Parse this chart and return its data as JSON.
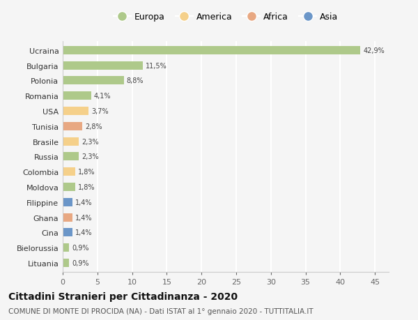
{
  "categories": [
    "Ucraina",
    "Bulgaria",
    "Polonia",
    "Romania",
    "USA",
    "Tunisia",
    "Brasile",
    "Russia",
    "Colombia",
    "Moldova",
    "Filippine",
    "Ghana",
    "Cina",
    "Bielorussia",
    "Lituania"
  ],
  "values": [
    42.9,
    11.5,
    8.8,
    4.1,
    3.7,
    2.8,
    2.3,
    2.3,
    1.8,
    1.8,
    1.4,
    1.4,
    1.4,
    0.9,
    0.9
  ],
  "labels": [
    "42,9%",
    "11,5%",
    "8,8%",
    "4,1%",
    "3,7%",
    "2,8%",
    "2,3%",
    "2,3%",
    "1,8%",
    "1,8%",
    "1,4%",
    "1,4%",
    "1,4%",
    "0,9%",
    "0,9%"
  ],
  "colors": [
    "#aec98a",
    "#aec98a",
    "#aec98a",
    "#aec98a",
    "#f5d08a",
    "#e8a882",
    "#f5d08a",
    "#aec98a",
    "#f5d08a",
    "#aec98a",
    "#6b96c8",
    "#e8a882",
    "#6b96c8",
    "#aec98a",
    "#aec98a"
  ],
  "legend_labels": [
    "Europa",
    "America",
    "Africa",
    "Asia"
  ],
  "legend_colors": [
    "#aec98a",
    "#f5d08a",
    "#e8a882",
    "#6b96c8"
  ],
  "title": "Cittadini Stranieri per Cittadinanza - 2020",
  "subtitle": "COMUNE DI MONTE DI PROCIDA (NA) - Dati ISTAT al 1° gennaio 2020 - TUTTITALIA.IT",
  "xlim": [
    0,
    47
  ],
  "xticks": [
    0,
    5,
    10,
    15,
    20,
    25,
    30,
    35,
    40,
    45
  ],
  "background_color": "#f5f5f5",
  "grid_color": "#ffffff",
  "bar_height": 0.55
}
